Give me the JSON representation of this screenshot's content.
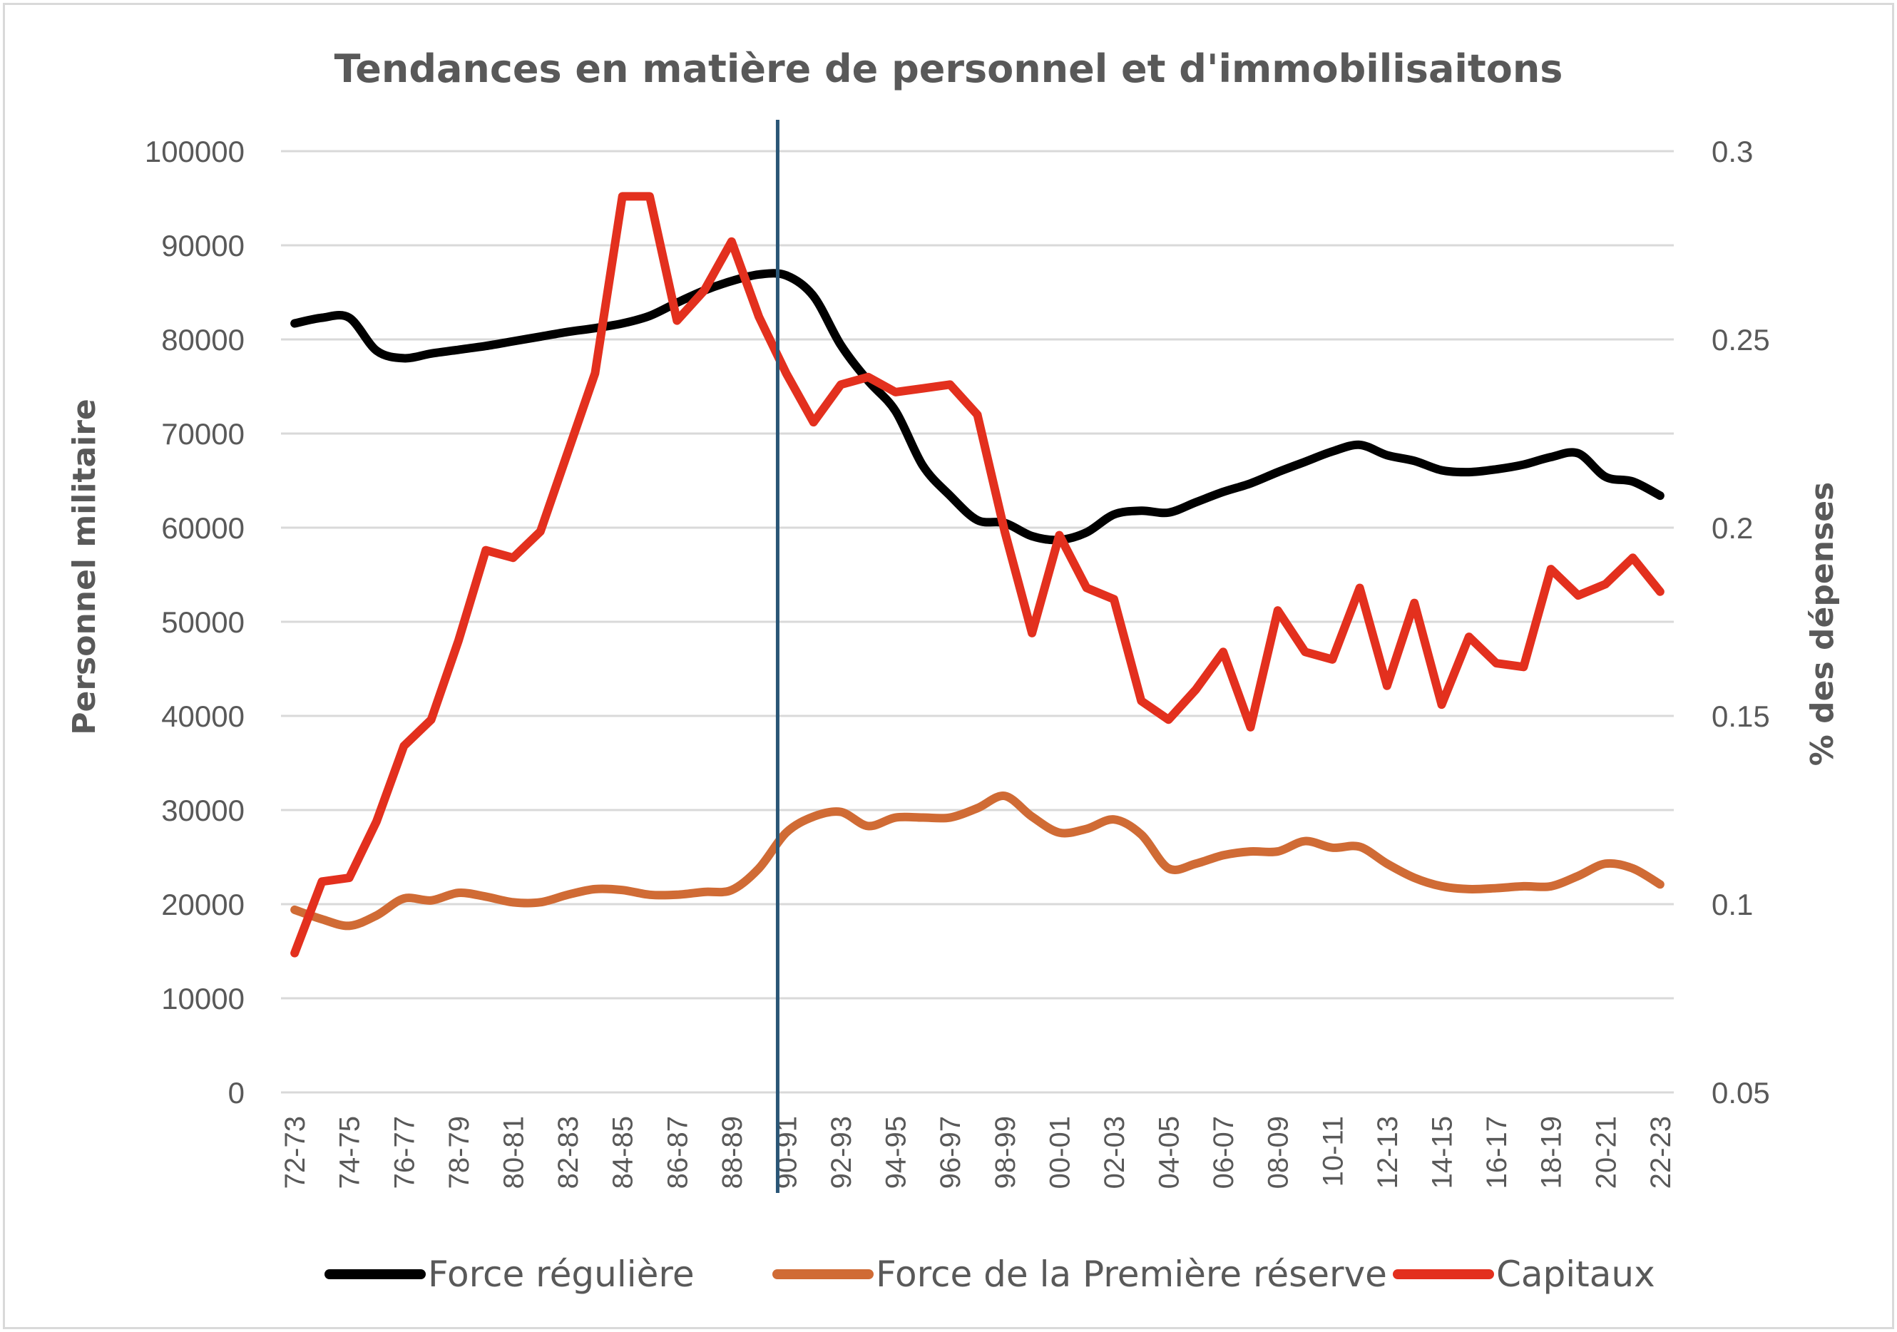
{
  "chart_data": {
    "type": "line",
    "title": "Tendances en matière de personnel et d'immobilisaitons",
    "xlabel": "",
    "ylabel": "Personnel militaire",
    "y2label": "% des dépenses",
    "ylim": [
      0,
      100000
    ],
    "y2lim": [
      0.05,
      0.3
    ],
    "yticks": [
      "0",
      "10000",
      "20000",
      "30000",
      "40000",
      "50000",
      "60000",
      "70000",
      "80000",
      "90000",
      "100000"
    ],
    "y2ticks": [
      "0.05",
      "0.1",
      "0.15",
      "0.2",
      "0.25",
      "0.3"
    ],
    "grid": true,
    "legend_position": "bottom",
    "reference_line_at": "90-91",
    "reference_line_color": "#2A5676",
    "categories": [
      "72-73",
      "73-74",
      "74-75",
      "75-76",
      "76-77",
      "77-78",
      "78-79",
      "79-80",
      "80-81",
      "81-82",
      "82-83",
      "83-84",
      "84-85",
      "85-86",
      "86-87",
      "87-88",
      "88-89",
      "89-90",
      "90-91",
      "91-92",
      "92-93",
      "93-94",
      "94-95",
      "95-96",
      "96-97",
      "97-98",
      "98-99",
      "99-00",
      "00-01",
      "01-02",
      "02-03",
      "03-04",
      "04-05",
      "05-06",
      "06-07",
      "07-08",
      "08-09",
      "09-10",
      "10-11",
      "11-12",
      "12-13",
      "13-14",
      "14-15",
      "15-16",
      "16-17",
      "17-18",
      "18-19",
      "19-20",
      "20-21",
      "21-22",
      "22-23"
    ],
    "tick_labels": [
      "72-73",
      "74-75",
      "76-77",
      "78-79",
      "80-81",
      "82-83",
      "84-85",
      "86-87",
      "88-89",
      "90-91",
      "92-93",
      "94-95",
      "96-97",
      "98-99",
      "00-01",
      "02-03",
      "04-05",
      "06-07",
      "08-09",
      "10-11",
      "12-13",
      "14-15",
      "16-17",
      "18-19",
      "20-21",
      "22-23"
    ],
    "series": [
      {
        "name": "Force régulière",
        "axis": "left",
        "color": "#000000",
        "smooth": true,
        "values": [
          81700,
          82300,
          82300,
          78800,
          78000,
          78500,
          78900,
          79300,
          79800,
          80300,
          80800,
          81200,
          81700,
          82500,
          83900,
          85200,
          86200,
          86900,
          86800,
          84600,
          79400,
          75600,
          72400,
          66600,
          63400,
          60800,
          60500,
          59100,
          58700,
          59500,
          61400,
          61800,
          61600,
          62700,
          63800,
          64700,
          65900,
          67000,
          68100,
          68800,
          67700,
          67100,
          66100,
          65900,
          66200,
          66700,
          67500,
          67900,
          65400,
          64900,
          63400
        ]
      },
      {
        "name": "Force de la Première réserve",
        "axis": "left",
        "color": "#D06B35",
        "smooth": true,
        "values": [
          19400,
          18400,
          17700,
          18800,
          20600,
          20400,
          21200,
          20800,
          20200,
          20200,
          21000,
          21600,
          21500,
          21000,
          21000,
          21300,
          21500,
          23800,
          27600,
          29300,
          29800,
          28300,
          29200,
          29200,
          29200,
          30200,
          31500,
          29300,
          27600,
          28000,
          29000,
          27400,
          23800,
          24300,
          25200,
          25600,
          25600,
          26700,
          26000,
          26100,
          24300,
          22800,
          21900,
          21600,
          21700,
          21900,
          21900,
          23000,
          24300,
          23800,
          22100
        ]
      },
      {
        "name": "Capitaux",
        "axis": "right",
        "color": "#E3301E",
        "smooth": false,
        "values": [
          0.087,
          0.106,
          0.107,
          0.122,
          0.142,
          0.149,
          0.17,
          0.194,
          0.192,
          0.199,
          0.22,
          0.241,
          0.288,
          0.288,
          0.255,
          0.263,
          0.276,
          0.256,
          0.241,
          0.228,
          0.238,
          0.24,
          0.236,
          0.237,
          0.238,
          0.23,
          0.199,
          0.172,
          0.198,
          0.184,
          0.181,
          0.154,
          0.149,
          0.157,
          0.167,
          0.147,
          0.178,
          0.167,
          0.165,
          0.184,
          0.158,
          0.18,
          0.153,
          0.171,
          0.164,
          0.163,
          0.189,
          0.182,
          0.185,
          0.192,
          0.183
        ]
      }
    ]
  }
}
